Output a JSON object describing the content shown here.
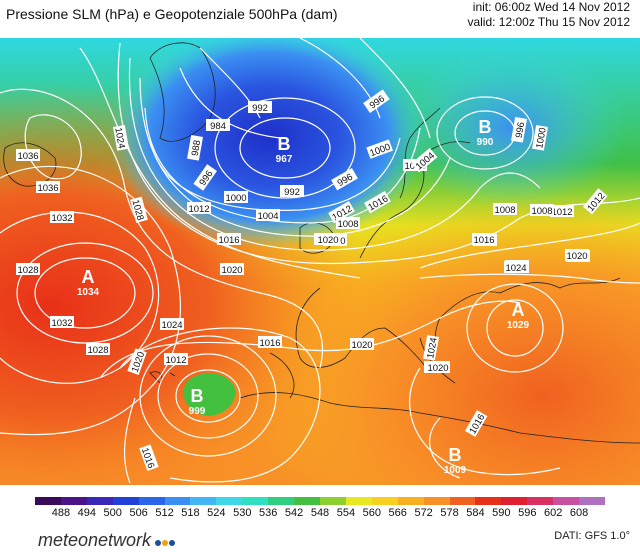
{
  "header": {
    "title": "Pressione SLM (hPa) e Geopotenziale 500hPa (dam)",
    "init": "init: 06:00z Wed 14 Nov 2012",
    "valid": "valid: 12:00z Thu 15 Nov 2012"
  },
  "colorbar": {
    "ticks": [
      "488",
      "494",
      "500",
      "506",
      "512",
      "518",
      "524",
      "530",
      "536",
      "542",
      "548",
      "554",
      "560",
      "566",
      "572",
      "578",
      "584",
      "590",
      "596",
      "602",
      "608"
    ],
    "colors": [
      "#3a0a5a",
      "#4a1488",
      "#3a28b8",
      "#2040d8",
      "#2a66ea",
      "#3b8ff2",
      "#42b6f2",
      "#3fd7e8",
      "#2ee0c0",
      "#2ecf80",
      "#44c040",
      "#8ed030",
      "#e8e820",
      "#f8d020",
      "#f8b020",
      "#f89028",
      "#f06020",
      "#e83018",
      "#e02030",
      "#d83060",
      "#c850a0",
      "#b070c0"
    ]
  },
  "map": {
    "isobars": [
      "1036",
      "1036",
      "1032",
      "1028",
      "1028",
      "1032",
      "1028",
      "1024",
      "1024",
      "1020",
      "1020",
      "1016",
      "1012",
      "1012",
      "1016",
      "1020",
      "1020",
      "1016",
      "1020",
      "1024",
      "1028",
      "1024",
      "1020",
      "1016",
      "1012",
      "1008",
      "1004",
      "1000",
      "996",
      "992",
      "996",
      "1000",
      "1004",
      "1008",
      "1012",
      "996",
      "1000",
      "1004",
      "1008",
      "1012",
      "1016",
      "1024",
      "1020",
      "1016",
      "1020",
      "1024",
      "1020",
      "996",
      "992",
      "984",
      "988",
      "1016"
    ],
    "centers": [
      {
        "letter": "A",
        "value": "1034"
      },
      {
        "letter": "B",
        "value": "967"
      },
      {
        "letter": "B",
        "value": "990"
      },
      {
        "letter": "B",
        "value": "999"
      },
      {
        "letter": "A",
        "value": "1029"
      },
      {
        "letter": "B",
        "value": "1009"
      }
    ]
  },
  "footer": {
    "logo": "meteonetwork",
    "logo_dots": [
      "#1a4fa0",
      "#f0a010",
      "#1a4fa0"
    ],
    "credit": "DATI: GFS 1.0°"
  }
}
